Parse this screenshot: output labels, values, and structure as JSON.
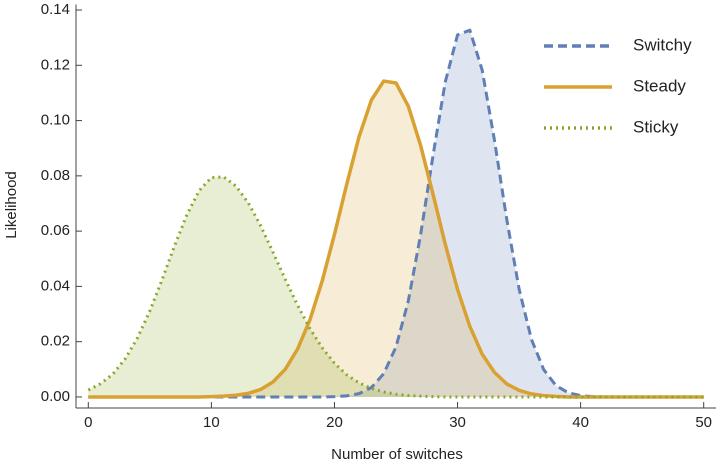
{
  "chart_data": {
    "type": "line",
    "xlabel": "Number of switches",
    "ylabel": "Likelihood",
    "x": [
      0,
      1,
      2,
      3,
      4,
      5,
      6,
      7,
      8,
      9,
      10,
      11,
      12,
      13,
      14,
      15,
      16,
      17,
      18,
      19,
      20,
      21,
      22,
      23,
      24,
      25,
      26,
      27,
      28,
      29,
      30,
      31,
      32,
      33,
      34,
      35,
      36,
      37,
      38,
      39,
      40,
      41,
      42,
      43,
      44,
      45,
      46,
      47,
      48,
      49,
      50
    ],
    "series": [
      {
        "name": "Switchy",
        "color": "#5f7fb5",
        "dash": "dashed",
        "values": [
          0,
          0,
          0,
          0,
          0,
          0,
          0,
          0,
          0,
          0,
          0,
          0,
          0,
          0,
          0,
          0,
          0,
          0,
          0,
          0,
          0.0001,
          0.0004,
          0.0012,
          0.0034,
          0.0084,
          0.0181,
          0.0347,
          0.0587,
          0.0871,
          0.1139,
          0.131,
          0.1327,
          0.1183,
          0.0929,
          0.0642,
          0.0391,
          0.0209,
          0.0099,
          0.0041,
          0.0015,
          0.0005,
          0.0001,
          0,
          0,
          0,
          0,
          0,
          0,
          0,
          0,
          0
        ]
      },
      {
        "name": "Steady",
        "color": "#d9a032",
        "dash": "solid",
        "values": [
          0,
          0,
          0,
          0,
          0,
          0,
          0,
          0,
          0,
          0,
          0.0001,
          0.0003,
          0.0006,
          0.0013,
          0.0027,
          0.0054,
          0.01,
          0.0173,
          0.0278,
          0.0419,
          0.0588,
          0.077,
          0.0942,
          0.1074,
          0.1143,
          0.1136,
          0.1052,
          0.091,
          0.0735,
          0.0553,
          0.0389,
          0.0255,
          0.0155,
          0.0089,
          0.0047,
          0.0024,
          0.0011,
          0.0005,
          0.0002,
          0,
          0,
          0,
          0,
          0,
          0,
          0,
          0,
          0,
          0,
          0,
          0
        ]
      },
      {
        "name": "Sticky",
        "color": "#88a82a",
        "dash": "dotted",
        "values": [
          0.0025,
          0.0048,
          0.0083,
          0.0138,
          0.0214,
          0.0311,
          0.0425,
          0.0546,
          0.0658,
          0.0746,
          0.0794,
          0.0796,
          0.0763,
          0.0702,
          0.062,
          0.0524,
          0.0426,
          0.0332,
          0.0248,
          0.0178,
          0.0122,
          0.008,
          0.0051,
          0.0031,
          0.0018,
          0.001,
          0.0005,
          0.0003,
          0.0001,
          0,
          0,
          0,
          0,
          0,
          0,
          0,
          0,
          0,
          0,
          0,
          0,
          0,
          0,
          0,
          0,
          0,
          0,
          0,
          0,
          0,
          0
        ]
      }
    ],
    "xlim": [
      -1,
      51
    ],
    "ylim": [
      -0.004,
      0.142
    ],
    "xticks": [
      0,
      10,
      20,
      30,
      40,
      50
    ],
    "yticks": [
      {
        "value": 0,
        "label": "0.00"
      },
      0.02,
      0.04,
      0.06,
      0.08,
      {
        "value": 0.1,
        "label": "0.10"
      },
      0.12,
      0.14
    ],
    "filled": true,
    "legend": "top-right"
  }
}
